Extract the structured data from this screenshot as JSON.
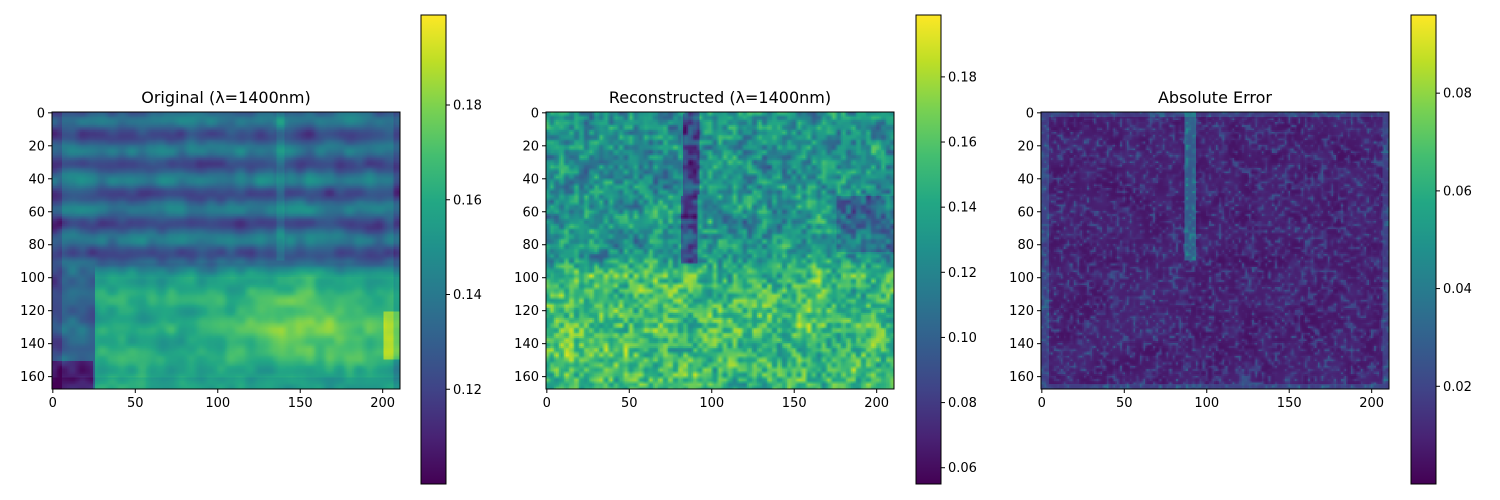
{
  "chart_data": [
    {
      "type": "heatmap",
      "title": "Original (λ=1400nm)",
      "image_shape": [
        168,
        211
      ],
      "xticks": [
        0,
        50,
        100,
        150,
        200
      ],
      "yticks": [
        0,
        20,
        40,
        60,
        80,
        100,
        120,
        140,
        160
      ],
      "colorbar": {
        "colormap": "viridis",
        "vmin": 0.1,
        "vmax": 0.199,
        "ticks": [
          0.12,
          0.14,
          0.16,
          0.18
        ]
      },
      "features": {
        "background": 0.135,
        "horizontal_bands_y": [
          12,
          32,
          50,
          70
        ],
        "bright_lower_region": {
          "y": [
            90,
            165
          ],
          "x": [
            25,
            211
          ],
          "value": 0.165
        },
        "bright_spot_center": [
          140,
          130
        ],
        "vertical_streak_x": 138
      }
    },
    {
      "type": "heatmap",
      "title": "Reconstructed (λ=1400nm)",
      "image_shape": [
        168,
        211
      ],
      "xticks": [
        0,
        50,
        100,
        150,
        200
      ],
      "yticks": [
        0,
        20,
        40,
        60,
        80,
        100,
        120,
        140,
        160
      ],
      "colorbar": {
        "colormap": "viridis",
        "vmin": 0.055,
        "vmax": 0.199,
        "ticks": [
          0.06,
          0.08,
          0.1,
          0.12,
          0.14,
          0.16,
          0.18
        ]
      },
      "features": {
        "background": 0.13,
        "dark_vertical_streak_x": 88,
        "bright_lower_region": {
          "y": [
            90,
            168
          ],
          "value": 0.165
        }
      }
    },
    {
      "type": "heatmap",
      "title": "Absolute Error",
      "image_shape": [
        168,
        211
      ],
      "xticks": [
        0,
        50,
        100,
        150,
        200
      ],
      "yticks": [
        0,
        20,
        40,
        60,
        80,
        100,
        120,
        140,
        160
      ],
      "colorbar": {
        "colormap": "viridis",
        "vmin": 0.0,
        "vmax": 0.096,
        "ticks": [
          0.02,
          0.04,
          0.06,
          0.08
        ]
      },
      "features": {
        "background": 0.008,
        "vertical_streak_x": 90,
        "streak_value": 0.03
      }
    }
  ]
}
